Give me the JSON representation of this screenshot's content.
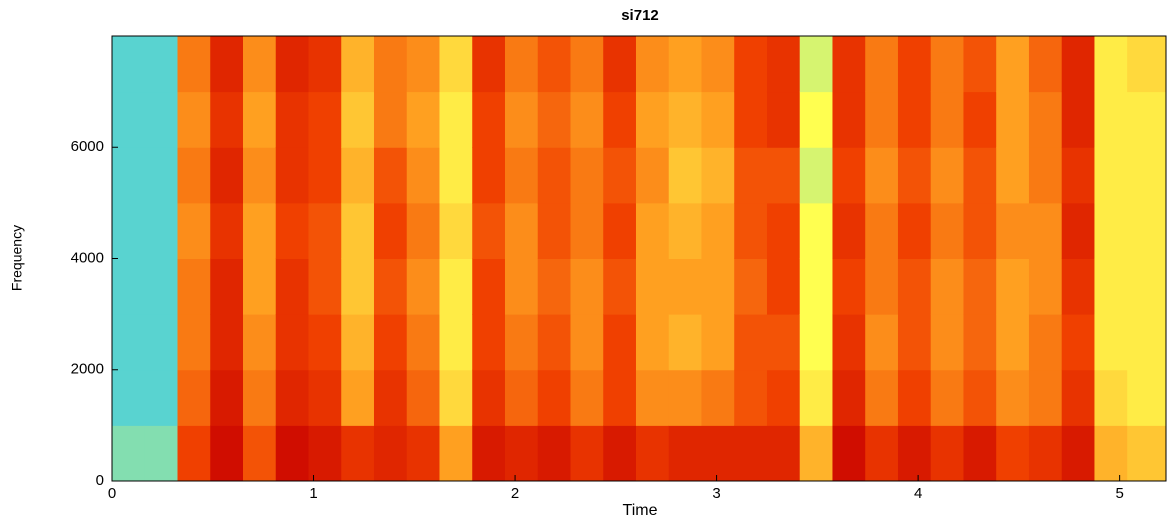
{
  "chart_data": {
    "type": "spectrogram",
    "title": "si712",
    "x_label": "Time",
    "y_label": "Frequency",
    "xlim": [
      0,
      5.23
    ],
    "ylim": [
      0,
      8000
    ],
    "xticks": [
      0,
      1,
      2,
      3,
      4,
      5
    ],
    "yticks": [
      0,
      2000,
      4000,
      6000
    ],
    "xbins": [
      0,
      0.1625,
      0.325,
      0.4875,
      0.65,
      0.8125,
      0.975,
      1.1375,
      1.3,
      1.4625,
      1.625,
      1.7875,
      1.95,
      2.1125,
      2.275,
      2.4375,
      2.6,
      2.7625,
      2.925,
      3.0875,
      3.25,
      3.4125,
      3.575,
      3.7375,
      3.9,
      4.0625,
      4.225,
      4.3875,
      4.55,
      4.7125,
      4.875,
      5.0375,
      5.23
    ],
    "ybins": [
      0,
      1000,
      2000,
      3000,
      4000,
      5000,
      6000,
      7000,
      8000
    ],
    "zlim": [
      0,
      1
    ],
    "colormap": [
      "#30c8f0",
      "#ffff50",
      "#ffa020",
      "#f04000",
      "#c80000"
    ],
    "z": [
      [
        0.1,
        0.05,
        0.05,
        0.05,
        0.05,
        0.05,
        0.05,
        0.05
      ],
      [
        0.1,
        0.05,
        0.05,
        0.05,
        0.05,
        0.05,
        0.05,
        0.05
      ],
      [
        0.75,
        0.65,
        0.6,
        0.6,
        0.55,
        0.6,
        0.55,
        0.6
      ],
      [
        0.95,
        0.9,
        0.85,
        0.85,
        0.8,
        0.85,
        0.8,
        0.85
      ],
      [
        0.7,
        0.6,
        0.55,
        0.5,
        0.5,
        0.55,
        0.5,
        0.55
      ],
      [
        0.95,
        0.85,
        0.8,
        0.8,
        0.75,
        0.8,
        0.8,
        0.85
      ],
      [
        0.9,
        0.8,
        0.75,
        0.7,
        0.7,
        0.75,
        0.75,
        0.8
      ],
      [
        0.8,
        0.5,
        0.45,
        0.4,
        0.4,
        0.45,
        0.4,
        0.45
      ],
      [
        0.85,
        0.8,
        0.75,
        0.7,
        0.75,
        0.7,
        0.6,
        0.6
      ],
      [
        0.8,
        0.65,
        0.6,
        0.55,
        0.6,
        0.55,
        0.5,
        0.55
      ],
      [
        0.5,
        0.35,
        0.3,
        0.3,
        0.35,
        0.3,
        0.3,
        0.35
      ],
      [
        0.9,
        0.8,
        0.75,
        0.75,
        0.7,
        0.75,
        0.75,
        0.8
      ],
      [
        0.85,
        0.65,
        0.6,
        0.55,
        0.55,
        0.6,
        0.55,
        0.6
      ],
      [
        0.9,
        0.75,
        0.7,
        0.65,
        0.7,
        0.7,
        0.65,
        0.7
      ],
      [
        0.8,
        0.6,
        0.55,
        0.55,
        0.6,
        0.6,
        0.55,
        0.6
      ],
      [
        0.9,
        0.75,
        0.75,
        0.7,
        0.75,
        0.7,
        0.75,
        0.8
      ],
      [
        0.8,
        0.55,
        0.5,
        0.5,
        0.5,
        0.55,
        0.5,
        0.55
      ],
      [
        0.85,
        0.55,
        0.45,
        0.5,
        0.45,
        0.4,
        0.45,
        0.5
      ],
      [
        0.85,
        0.6,
        0.5,
        0.5,
        0.5,
        0.45,
        0.5,
        0.55
      ],
      [
        0.85,
        0.7,
        0.7,
        0.65,
        0.7,
        0.7,
        0.75,
        0.75
      ],
      [
        0.85,
        0.75,
        0.7,
        0.75,
        0.75,
        0.7,
        0.8,
        0.8
      ],
      [
        0.45,
        0.3,
        0.25,
        0.25,
        0.25,
        0.2,
        0.25,
        0.2
      ],
      [
        0.95,
        0.85,
        0.8,
        0.75,
        0.8,
        0.75,
        0.8,
        0.8
      ],
      [
        0.8,
        0.6,
        0.55,
        0.6,
        0.6,
        0.55,
        0.6,
        0.6
      ],
      [
        0.9,
        0.75,
        0.7,
        0.7,
        0.75,
        0.7,
        0.75,
        0.75
      ],
      [
        0.8,
        0.6,
        0.55,
        0.55,
        0.6,
        0.55,
        0.6,
        0.6
      ],
      [
        0.9,
        0.7,
        0.65,
        0.65,
        0.7,
        0.7,
        0.75,
        0.7
      ],
      [
        0.75,
        0.55,
        0.5,
        0.5,
        0.55,
        0.5,
        0.5,
        0.5
      ],
      [
        0.8,
        0.6,
        0.6,
        0.55,
        0.55,
        0.6,
        0.6,
        0.65
      ],
      [
        0.9,
        0.8,
        0.75,
        0.8,
        0.85,
        0.8,
        0.85,
        0.85
      ],
      [
        0.45,
        0.35,
        0.3,
        0.3,
        0.3,
        0.3,
        0.3,
        0.3
      ],
      [
        0.4,
        0.3,
        0.3,
        0.3,
        0.3,
        0.3,
        0.3,
        0.35
      ]
    ]
  }
}
